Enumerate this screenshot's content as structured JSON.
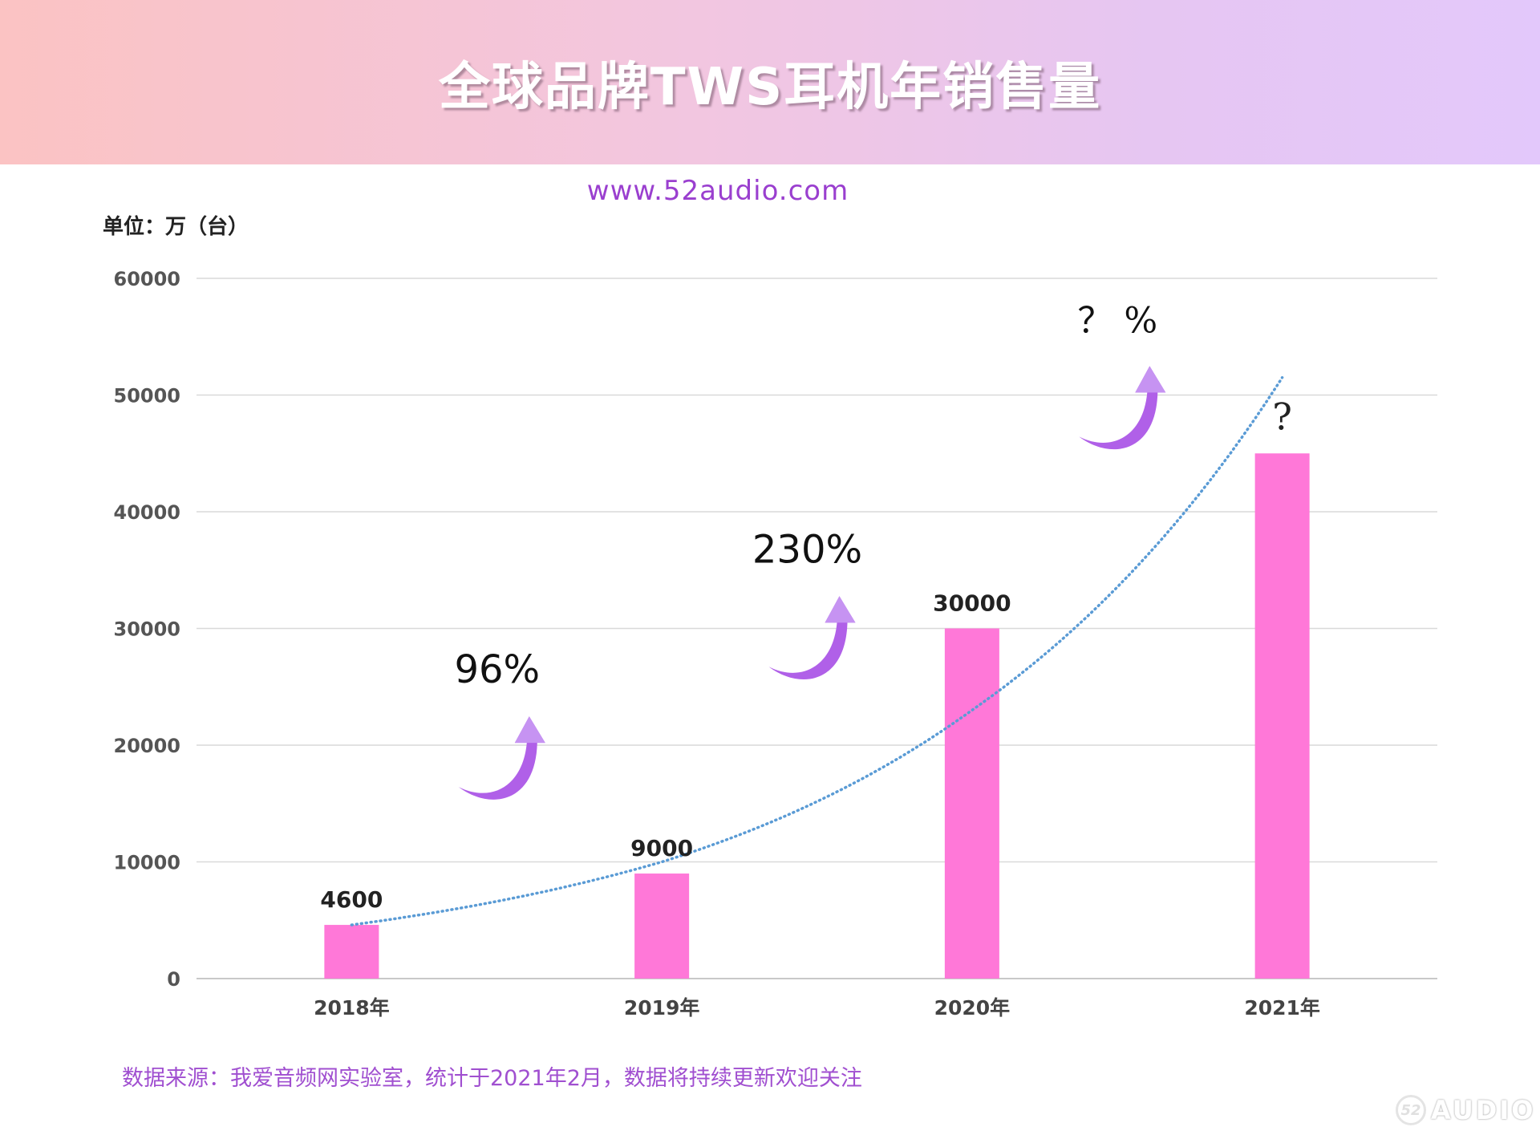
{
  "header": {
    "title": "全球品牌TWS耳机年销售量",
    "site": "www.52audio.com"
  },
  "unit_label": "单位：万（台）",
  "source_note": "数据来源：我爱音频网实验室，统计于2021年2月，数据将持续更新欢迎关注",
  "watermark": {
    "badge": "52",
    "text": "AUDIO"
  },
  "colors": {
    "banner_start": "#fbc3c3",
    "banner_end": "#e3c8fb",
    "bar": "#ff78d8",
    "arrow": "#b060e8",
    "trend": "#5a9bd5",
    "accent_text": "#a04fd0",
    "grid": "#d9d9d9"
  },
  "chart_data": {
    "type": "bar",
    "categories": [
      "2018年",
      "2019年",
      "2020年",
      "2021年"
    ],
    "values": [
      4600,
      9000,
      30000,
      45000
    ],
    "data_labels": [
      "4600",
      "9000",
      "30000",
      "?"
    ],
    "ylim": [
      0,
      60000
    ],
    "yticks": [
      0,
      10000,
      20000,
      30000,
      40000,
      50000,
      60000
    ],
    "ytick_labels": [
      "0",
      "10000",
      "20000",
      "30000",
      "40000",
      "50000",
      "60000"
    ],
    "grid": true,
    "trendline": {
      "style": "dotted",
      "color": "#5a9bd5",
      "points": [
        [
          1,
          4600
        ],
        [
          2,
          10000
        ],
        [
          3,
          23000
        ],
        [
          4,
          51500
        ]
      ]
    },
    "growth_annotations": [
      {
        "text": "96%",
        "between": [
          1,
          2
        ]
      },
      {
        "text": "230%",
        "between": [
          2,
          3
        ]
      },
      {
        "text": "？ %",
        "between": [
          3,
          4
        ]
      }
    ]
  }
}
